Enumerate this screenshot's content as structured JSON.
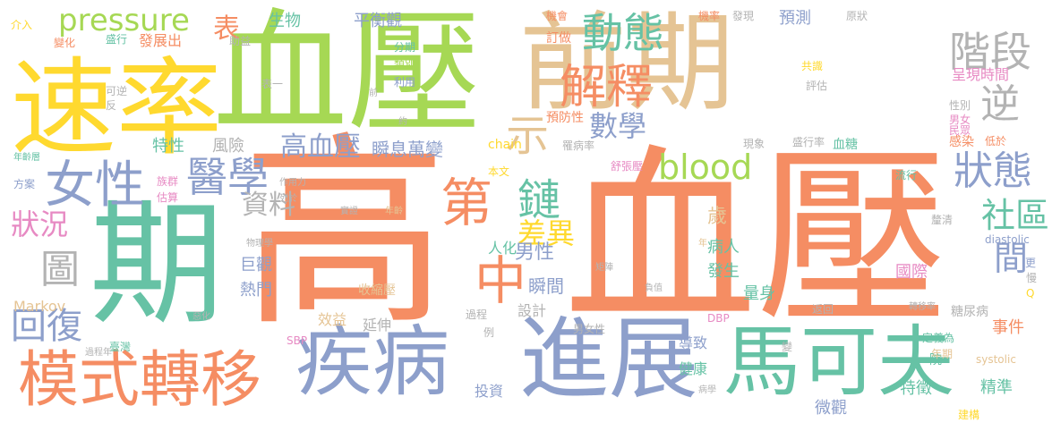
{
  "palette": {
    "orange": "#f58d63",
    "green": "#66c2a5",
    "blue": "#8d9fcb",
    "lime": "#a6d854",
    "yellow": "#ffd92f",
    "tan": "#e5c494",
    "pink": "#e78ac3",
    "gray": "#b3b3b3"
  },
  "words": [
    "速率",
    "血壓",
    "前期",
    "高",
    "血壓",
    "期",
    "進展",
    "疾病",
    "馬可夫",
    "模式轉移",
    "女性",
    "醫學",
    "解釋",
    "動態",
    "階段",
    "逆",
    "狀態",
    "blood",
    "pressure",
    "第",
    "中",
    "鏈",
    "差異",
    "高血壓",
    "數學",
    "圖",
    "回復",
    "狀況",
    "資料",
    "社區",
    "間",
    "表",
    "生物",
    "平衡觀",
    "預測",
    "示",
    "特性",
    "風險",
    "瞬息萬變",
    "男性",
    "瞬間",
    "歲",
    "病人",
    "發生",
    "國際",
    "量身",
    "事件",
    "精準",
    "特徵",
    "微觀",
    "延伸",
    "效益",
    "巨觀",
    "熱門",
    "人化",
    "設計",
    "投資",
    "導致",
    "健康",
    "糖尿病",
    "Markov",
    "臺灣",
    "過程",
    "收縮壓",
    "矩陣",
    "負值",
    "返回",
    "轉移率",
    "定義為",
    "院",
    "年期",
    "systolic",
    "diastolic",
    "更",
    "慢",
    "Q",
    "釐清",
    "流行",
    "血糖",
    "盛行率",
    "現象",
    "感染",
    "低於",
    "民眾",
    "男女",
    "性別",
    "評估",
    "呈現時間",
    "共識",
    "本文",
    "chain",
    "舒張壓",
    "罹病率",
    "訂做",
    "預防性",
    "分期",
    "類別",
    "利用",
    "可逆",
    "反",
    "表一",
    "約",
    "介入",
    "變化",
    "盛行",
    "發展出",
    "助益",
    "機會",
    "機率",
    "發現",
    "原狀",
    "年齡層",
    "方案",
    "族群",
    "估算",
    "作用力",
    "列於",
    "物理學",
    "實證",
    "年齡",
    "年",
    "DBP",
    "SBP",
    "男女性",
    "例",
    "惡化",
    "過程年",
    "病學",
    "變",
    "建構",
    "前"
  ]
}
